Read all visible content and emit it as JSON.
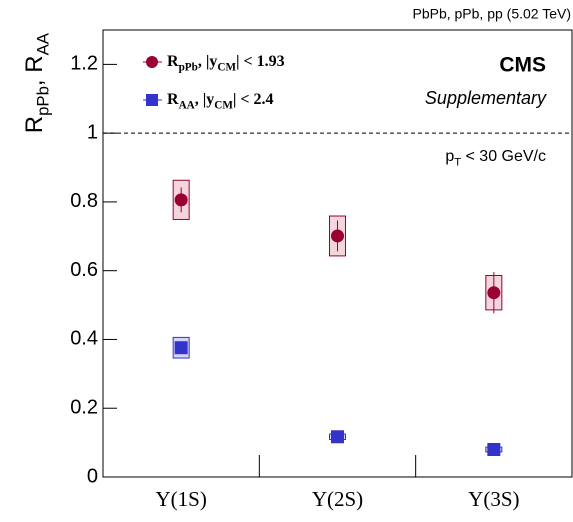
{
  "chart_data": {
    "type": "errorpoints",
    "title": "PbPb, pPb, pp (5.02 TeV)",
    "experiment": "CMS",
    "subtitle": "Supplementary",
    "annotation": [
      {
        "text": "p"
      },
      {
        "text": "T",
        "sub": true
      },
      {
        "text": " < 30 GeV/c"
      }
    ],
    "y_label": [
      {
        "text": "R"
      },
      {
        "text": "pPb",
        "sub": true
      },
      {
        "text": ", R"
      },
      {
        "text": "AA",
        "sub": true
      }
    ],
    "categories": [
      "Υ(1S)",
      "Υ(2S)",
      "Υ(3S)"
    ],
    "series": [
      {
        "name": [
          {
            "text": "R"
          },
          {
            "text": "pPb",
            "sub": true
          },
          {
            "text": ", |y"
          },
          {
            "text": "CM",
            "sub": true
          },
          {
            "text": "| < 1.93"
          }
        ],
        "color": "#990033",
        "box_color": "#f5d5dc",
        "marker": "circle",
        "values": [
          0.806,
          0.701,
          0.536
        ],
        "errors": [
          0.036,
          0.045,
          0.06
        ],
        "sys_errors": [
          0.057,
          0.058,
          0.05
        ]
      },
      {
        "name": [
          {
            "text": "R"
          },
          {
            "text": "AA",
            "sub": true
          },
          {
            "text": ", |y"
          },
          {
            "text": "CM",
            "sub": true
          },
          {
            "text": "| < 2.4"
          }
        ],
        "color": "#3333cc",
        "box_color": "#d5d5f5",
        "marker": "square",
        "values": [
          0.376,
          0.117,
          0.08
        ],
        "errors": [
          0.01,
          0.006,
          0.005
        ],
        "sys_errors": [
          0.03,
          0.008,
          0.007
        ]
      }
    ],
    "ylim": [
      0,
      1.3
    ],
    "yticks": [
      0,
      0.2,
      0.4,
      0.6,
      0.8,
      1,
      1.2
    ],
    "reference_line": 1
  }
}
